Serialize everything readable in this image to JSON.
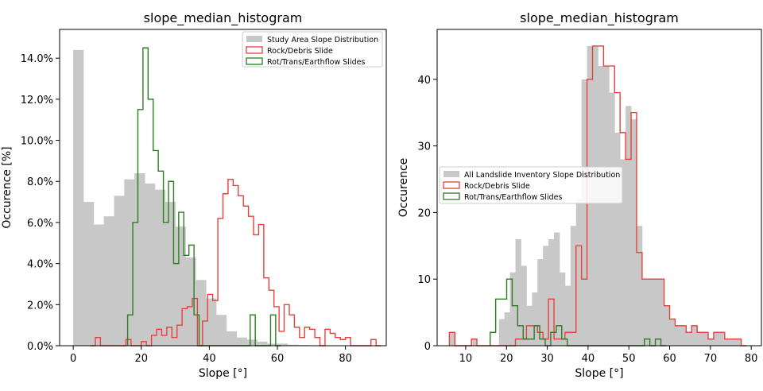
{
  "chart_data": [
    {
      "type": "histogram",
      "title": "slope_median_histogram",
      "xlabel": "Slope [°]",
      "ylabel": "Occurence [%]",
      "xlim": [
        -4,
        92
      ],
      "ylim": [
        0,
        15.4
      ],
      "x_ticks": [
        0,
        20,
        40,
        60,
        80
      ],
      "x_tick_labels": [
        "0",
        "20",
        "40",
        "60",
        "80"
      ],
      "y_ticks": [
        0,
        2,
        4,
        6,
        8,
        10,
        12,
        14
      ],
      "y_tick_labels": [
        "0.0%",
        "2.0%",
        "4.0%",
        "6.0%",
        "8.0%",
        "10.0%",
        "12.0%",
        "14.0%"
      ],
      "grid": false,
      "legend_position": "top-right",
      "series": [
        {
          "name": "Study Area Slope Distribution",
          "style": "filled",
          "color": "#c8c8c8",
          "bin_start": 0,
          "bin_width": 3,
          "values": [
            14.4,
            7.0,
            5.9,
            6.3,
            7.3,
            8.1,
            8.4,
            7.9,
            7.6,
            7.0,
            5.8,
            4.3,
            3.2,
            2.3,
            1.5,
            0.7,
            0.4,
            0.3,
            0.2,
            0.1,
            0.1,
            0.05,
            0.03,
            0.02,
            0.01,
            0.01,
            0.01,
            0.01,
            0.01
          ]
        },
        {
          "name": "Rock/Debris Slide",
          "style": "step",
          "color": "#e8413c",
          "bin_start": 5,
          "bin_width": 1.5,
          "values": [
            0,
            0.4,
            0,
            0,
            0,
            0,
            0,
            0.3,
            0,
            0,
            0.2,
            0,
            0.5,
            0.8,
            0.5,
            0.9,
            0.4,
            1.0,
            1.8,
            1.9,
            2.3,
            0,
            1.2,
            2.5,
            2.2,
            6.2,
            7.4,
            8.1,
            7.8,
            7.3,
            6.8,
            6.3,
            5.4,
            5.9,
            3.3,
            2.7,
            1.9,
            0.7,
            2.0,
            1.5,
            0.9,
            0.4,
            0.9,
            0.8,
            0.4,
            0,
            0.8,
            0.6,
            0.4,
            0.3,
            0.4,
            0,
            0,
            0,
            0,
            0.3,
            0
          ]
        },
        {
          "name": "Rot/Trans/Earthflow Slides",
          "style": "step",
          "color": "#2e7d22",
          "bin_start": 16,
          "bin_width": 1.5,
          "values": [
            1.5,
            6.0,
            11.5,
            14.5,
            12.0,
            9.5,
            8.5,
            6.0,
            8.0,
            4.0,
            6.5,
            4.4,
            4.9,
            1.5,
            0,
            0,
            0,
            0,
            0,
            0,
            0,
            0,
            0,
            0,
            1.5,
            0,
            0,
            0,
            1.5,
            0
          ]
        }
      ]
    },
    {
      "type": "histogram",
      "title": "slope_median_histogram",
      "xlabel": "Slope [°]",
      "ylabel": "Occurence",
      "xlim": [
        3,
        82.5
      ],
      "ylim": [
        0,
        47.5
      ],
      "x_ticks": [
        10,
        20,
        30,
        40,
        50,
        60,
        70,
        80
      ],
      "x_tick_labels": [
        "10",
        "20",
        "30",
        "40",
        "50",
        "60",
        "70",
        "80"
      ],
      "y_ticks": [
        0,
        10,
        20,
        30,
        40
      ],
      "y_tick_labels": [
        "0",
        "10",
        "20",
        "30",
        "40"
      ],
      "grid": false,
      "legend_position": "center-left",
      "series": [
        {
          "name": "All Landslide Inventory Slope Distribution",
          "style": "filled",
          "color": "#c8c8c8",
          "bin_start": 6,
          "bin_width": 1.35,
          "values": [
            2,
            0,
            0,
            0,
            1,
            0,
            0,
            0,
            0,
            4,
            5,
            11,
            16,
            12,
            6,
            8,
            13,
            15,
            16,
            17,
            11,
            9,
            18,
            22,
            40,
            45,
            45,
            42,
            42,
            38,
            32,
            28,
            36,
            34,
            18,
            10,
            10,
            10,
            10,
            6,
            4,
            3,
            3,
            2,
            3,
            2,
            2,
            1,
            2,
            2,
            1,
            1,
            1,
            0
          ]
        },
        {
          "name": "Rock/Debris Slide",
          "style": "step",
          "color": "#e8413c",
          "bin_start": 6,
          "bin_width": 1.35,
          "values": [
            2,
            0,
            0,
            0,
            1,
            0,
            0,
            0,
            0,
            0,
            0,
            0,
            1,
            1,
            3,
            3,
            2,
            1,
            7,
            1,
            1,
            2,
            2,
            15,
            10,
            40,
            45,
            45,
            42,
            42,
            38,
            32,
            28,
            35,
            14,
            10,
            10,
            10,
            10,
            6,
            4,
            3,
            3,
            2,
            3,
            2,
            2,
            1,
            2,
            2,
            1,
            1,
            1,
            0
          ]
        },
        {
          "name": "Rot/Trans/Earthflow Slides",
          "style": "step",
          "color": "#2e7d22",
          "bin_start": 16,
          "bin_width": 1.35,
          "values": [
            2,
            7,
            7,
            10,
            6,
            3,
            1,
            1,
            3,
            1,
            0,
            2,
            3,
            1,
            0,
            0,
            0,
            0,
            0,
            0,
            0,
            0,
            0,
            0,
            0,
            0,
            0,
            0,
            1,
            0,
            1,
            0
          ]
        }
      ]
    }
  ]
}
